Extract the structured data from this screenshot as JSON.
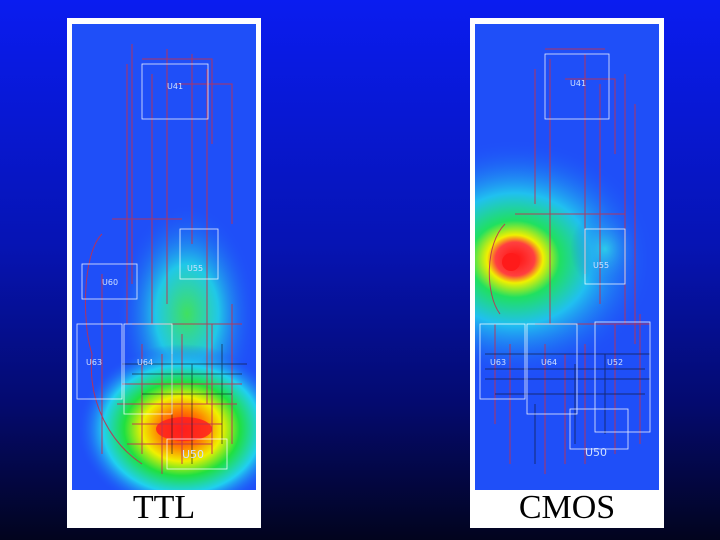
{
  "panels": [
    {
      "caption": "TTL",
      "chips": [
        {
          "label": "U41",
          "size": "sm"
        },
        {
          "label": "U55",
          "size": "sm"
        },
        {
          "label": "U60",
          "size": "sm"
        },
        {
          "label": "U63",
          "size": "sm"
        },
        {
          "label": "U64",
          "size": "sm"
        },
        {
          "label": "U50",
          "size": "lg"
        }
      ]
    },
    {
      "caption": "CMOS",
      "chips": [
        {
          "label": "U41",
          "size": "sm"
        },
        {
          "label": "U55",
          "size": "sm"
        },
        {
          "label": "U63",
          "size": "sm"
        },
        {
          "label": "U64",
          "size": "sm"
        },
        {
          "label": "U52",
          "size": "sm"
        },
        {
          "label": "U50",
          "size": "lg"
        }
      ]
    }
  ],
  "colors": {
    "background_top": "#0a1cf0",
    "background_bottom": "#02041e",
    "board": "#1f4ff8",
    "trace": "#c03050",
    "outline": "#ffffff"
  }
}
